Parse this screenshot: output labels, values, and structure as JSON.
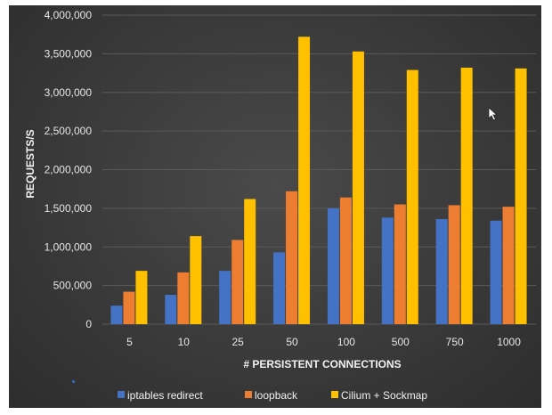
{
  "chart_data": {
    "type": "bar",
    "title": "",
    "xlabel": "# PERSISTENT CONNECTIONS",
    "ylabel": "REQUESTS/S",
    "categories": [
      "5",
      "10",
      "25",
      "50",
      "100",
      "500",
      "750",
      "1000"
    ],
    "ylim": [
      0,
      4000000
    ],
    "yticks": [
      0,
      500000,
      1000000,
      1500000,
      2000000,
      2500000,
      3000000,
      3500000,
      4000000
    ],
    "ytick_labels": [
      "0",
      "500,000",
      "1,000,000",
      "1,500,000",
      "2,000,000",
      "2,500,000",
      "3,000,000",
      "3,500,000",
      "4,000,000"
    ],
    "grid": true,
    "legend_position": "bottom",
    "series": [
      {
        "name": "iptables redirect",
        "color": "#4472c4",
        "values": [
          240000,
          380000,
          690000,
          930000,
          1500000,
          1380000,
          1360000,
          1340000
        ]
      },
      {
        "name": "loopback",
        "color": "#ed7d31",
        "values": [
          420000,
          670000,
          1090000,
          1720000,
          1640000,
          1550000,
          1540000,
          1520000
        ]
      },
      {
        "name": "Cilium + Sockmap",
        "color": "#ffc000",
        "values": [
          690000,
          1140000,
          1620000,
          3720000,
          3530000,
          3290000,
          3320000,
          3310000
        ]
      }
    ]
  }
}
